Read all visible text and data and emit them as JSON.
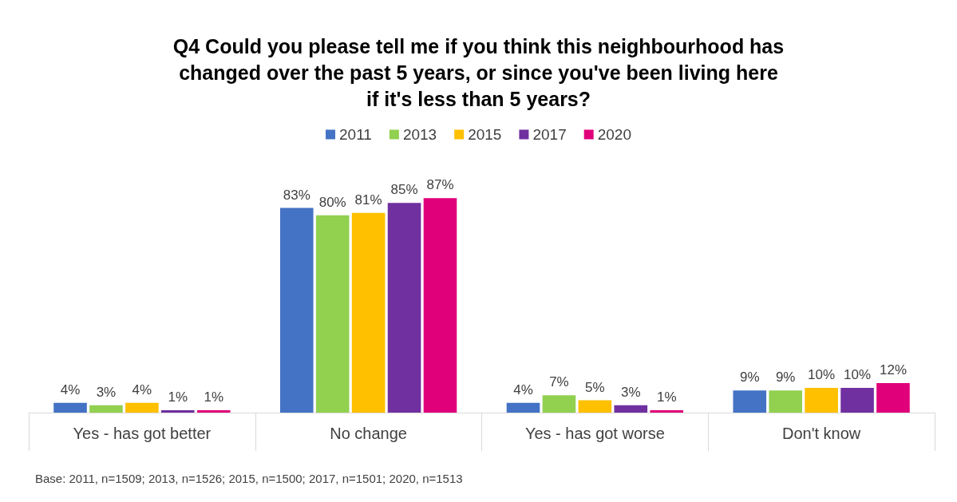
{
  "chart_data": {
    "type": "bar",
    "title": "Q4 Could you please tell me if you think this neighbourhood has\nchanged over the past 5 years, or since you've been living here\nif it's less than 5 years?",
    "categories": [
      "Yes - has got better",
      "No change",
      "Yes - has got worse",
      "Don't know"
    ],
    "series": [
      {
        "name": "2011",
        "color": "#4472c4",
        "values": [
          4,
          83,
          4,
          9
        ],
        "value_labels": [
          "4%",
          "83%",
          "4%",
          "9%"
        ]
      },
      {
        "name": "2013",
        "color": "#92d050",
        "values": [
          3,
          80,
          7,
          9
        ],
        "value_labels": [
          "3%",
          "80%",
          "7%",
          "9%"
        ]
      },
      {
        "name": "2015",
        "color": "#ffc000",
        "values": [
          4,
          81,
          5,
          10
        ],
        "value_labels": [
          "4%",
          "81%",
          "5%",
          "10%"
        ]
      },
      {
        "name": "2017",
        "color": "#7030a0",
        "values": [
          1,
          85,
          3,
          10
        ],
        "value_labels": [
          "1%",
          "85%",
          "3%",
          "10%"
        ]
      },
      {
        "name": "2020",
        "color": "#e0007a",
        "values": [
          1,
          87,
          1,
          12
        ],
        "value_labels": [
          "1%",
          "87%",
          "1%",
          "12%"
        ]
      }
    ],
    "legend": "top",
    "grid": false,
    "annotations": [
      "Base: 2011, n=1509; 2013, n=1526; 2015, n=1500; 2017, n=1501; 2020, n=1513"
    ]
  }
}
